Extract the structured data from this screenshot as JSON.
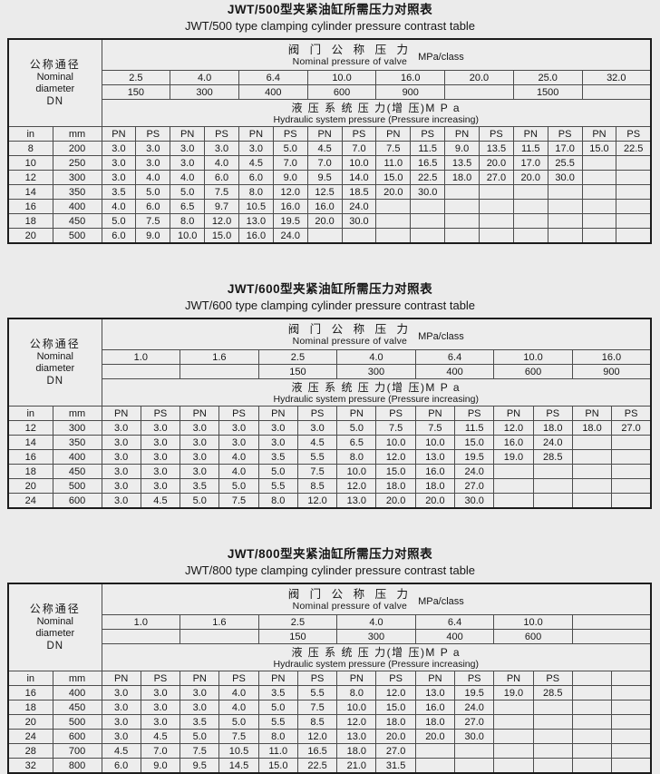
{
  "page_bg": "#ebebeb",
  "border_color": "#1c1c1c",
  "shared": {
    "left_header": {
      "cn": "公称通径",
      "en1": "Nominal",
      "en2": "diameter",
      "en3": "DN"
    },
    "valve_header": {
      "cn": "阀 门 公 称 压 力",
      "en": "Nominal pressure of valve",
      "unit": "MPa/class"
    },
    "hydraulic_header": {
      "cn": "液 压 系 统 压 力(增 压)M P a",
      "en": "Hydraulic system pressure (Pressure increasing)"
    },
    "unit_in": "in",
    "unit_mm": "mm",
    "pn_label": "PN",
    "ps_label": "PS"
  },
  "tables": [
    {
      "title_cn": "JWT/500型夹紧油缸所需压力对照表",
      "title_en": "JWT/500 type clamping cylinder pressure contrast table",
      "mpa_values": [
        "2.5",
        "4.0",
        "6.4",
        "10.0",
        "16.0",
        "20.0",
        "25.0",
        "32.0"
      ],
      "class_values": [
        "150",
        "300",
        "400",
        "600",
        "900",
        "",
        "1500",
        ""
      ],
      "col_headers": [
        "PN",
        "PS",
        "PN",
        "PS",
        "PN",
        "PS",
        "PN",
        "PS",
        "PN",
        "PS",
        "PN",
        "PS",
        "PN",
        "PS",
        "PN",
        "PS"
      ],
      "rows": [
        {
          "in": "8",
          "mm": "200",
          "values": [
            "3.0",
            "3.0",
            "3.0",
            "3.0",
            "3.0",
            "5.0",
            "4.5",
            "7.0",
            "7.5",
            "11.5",
            "9.0",
            "13.5",
            "11.5",
            "17.0",
            "15.0",
            "22.5"
          ]
        },
        {
          "in": "10",
          "mm": "250",
          "values": [
            "3.0",
            "3.0",
            "3.0",
            "4.0",
            "4.5",
            "7.0",
            "7.0",
            "10.0",
            "11.0",
            "16.5",
            "13.5",
            "20.0",
            "17.0",
            "25.5",
            "",
            ""
          ]
        },
        {
          "in": "12",
          "mm": "300",
          "values": [
            "3.0",
            "4.0",
            "4.0",
            "6.0",
            "6.0",
            "9.0",
            "9.5",
            "14.0",
            "15.0",
            "22.5",
            "18.0",
            "27.0",
            "20.0",
            "30.0",
            "",
            ""
          ]
        },
        {
          "in": "14",
          "mm": "350",
          "values": [
            "3.5",
            "5.0",
            "5.0",
            "7.5",
            "8.0",
            "12.0",
            "12.5",
            "18.5",
            "20.0",
            "30.0",
            "",
            "",
            "",
            "",
            "",
            ""
          ]
        },
        {
          "in": "16",
          "mm": "400",
          "values": [
            "4.0",
            "6.0",
            "6.5",
            "9.7",
            "10.5",
            "16.0",
            "16.0",
            "24.0",
            "",
            "",
            "",
            "",
            "",
            "",
            "",
            ""
          ]
        },
        {
          "in": "18",
          "mm": "450",
          "values": [
            "5.0",
            "7.5",
            "8.0",
            "12.0",
            "13.0",
            "19.5",
            "20.0",
            "30.0",
            "",
            "",
            "",
            "",
            "",
            "",
            "",
            ""
          ]
        },
        {
          "in": "20",
          "mm": "500",
          "values": [
            "6.0",
            "9.0",
            "10.0",
            "15.0",
            "16.0",
            "24.0",
            "",
            "",
            "",
            "",
            "",
            "",
            "",
            "",
            "",
            ""
          ]
        }
      ]
    },
    {
      "title_cn": "JWT/600型夹紧油缸所需压力对照表",
      "title_en": "JWT/600 type clamping cylinder pressure contrast table",
      "mpa_values": [
        "1.0",
        "1.6",
        "2.5",
        "4.0",
        "6.4",
        "10.0",
        "16.0"
      ],
      "class_values": [
        "",
        "",
        "150",
        "300",
        "400",
        "600",
        "900"
      ],
      "col_headers": [
        "PN",
        "PS",
        "PN",
        "PS",
        "PN",
        "PS",
        "PN",
        "PS",
        "PN",
        "PS",
        "PN",
        "PS",
        "PN",
        "PS"
      ],
      "rows": [
        {
          "in": "12",
          "mm": "300",
          "values": [
            "3.0",
            "3.0",
            "3.0",
            "3.0",
            "3.0",
            "3.0",
            "5.0",
            "7.5",
            "7.5",
            "11.5",
            "12.0",
            "18.0",
            "18.0",
            "27.0"
          ]
        },
        {
          "in": "14",
          "mm": "350",
          "values": [
            "3.0",
            "3.0",
            "3.0",
            "3.0",
            "3.0",
            "4.5",
            "6.5",
            "10.0",
            "10.0",
            "15.0",
            "16.0",
            "24.0",
            "",
            ""
          ]
        },
        {
          "in": "16",
          "mm": "400",
          "values": [
            "3.0",
            "3.0",
            "3.0",
            "4.0",
            "3.5",
            "5.5",
            "8.0",
            "12.0",
            "13.0",
            "19.5",
            "19.0",
            "28.5",
            "",
            ""
          ]
        },
        {
          "in": "18",
          "mm": "450",
          "values": [
            "3.0",
            "3.0",
            "3.0",
            "4.0",
            "5.0",
            "7.5",
            "10.0",
            "15.0",
            "16.0",
            "24.0",
            "",
            "",
            "",
            ""
          ]
        },
        {
          "in": "20",
          "mm": "500",
          "values": [
            "3.0",
            "3.0",
            "3.5",
            "5.0",
            "5.5",
            "8.5",
            "12.0",
            "18.0",
            "18.0",
            "27.0",
            "",
            "",
            "",
            ""
          ]
        },
        {
          "in": "24",
          "mm": "600",
          "values": [
            "3.0",
            "4.5",
            "5.0",
            "7.5",
            "8.0",
            "12.0",
            "13.0",
            "20.0",
            "20.0",
            "30.0",
            "",
            "",
            "",
            ""
          ]
        }
      ]
    },
    {
      "title_cn": "JWT/800型夹紧油缸所需压力对照表",
      "title_en": "JWT/800 type clamping cylinder pressure contrast table",
      "mpa_values": [
        "1.0",
        "1.6",
        "2.5",
        "4.0",
        "6.4",
        "10.0",
        ""
      ],
      "class_values": [
        "",
        "",
        "150",
        "300",
        "400",
        "600",
        ""
      ],
      "col_headers": [
        "PN",
        "PS",
        "PN",
        "PS",
        "PN",
        "PS",
        "PN",
        "PS",
        "PN",
        "PS",
        "PN",
        "PS",
        "",
        ""
      ],
      "rows": [
        {
          "in": "16",
          "mm": "400",
          "values": [
            "3.0",
            "3.0",
            "3.0",
            "4.0",
            "3.5",
            "5.5",
            "8.0",
            "12.0",
            "13.0",
            "19.5",
            "19.0",
            "28.5",
            "",
            ""
          ]
        },
        {
          "in": "18",
          "mm": "450",
          "values": [
            "3.0",
            "3.0",
            "3.0",
            "4.0",
            "5.0",
            "7.5",
            "10.0",
            "15.0",
            "16.0",
            "24.0",
            "",
            "",
            "",
            ""
          ]
        },
        {
          "in": "20",
          "mm": "500",
          "values": [
            "3.0",
            "3.0",
            "3.5",
            "5.0",
            "5.5",
            "8.5",
            "12.0",
            "18.0",
            "18.0",
            "27.0",
            "",
            "",
            "",
            ""
          ]
        },
        {
          "in": "24",
          "mm": "600",
          "values": [
            "3.0",
            "4.5",
            "5.0",
            "7.5",
            "8.0",
            "12.0",
            "13.0",
            "20.0",
            "20.0",
            "30.0",
            "",
            "",
            "",
            ""
          ]
        },
        {
          "in": "28",
          "mm": "700",
          "values": [
            "4.5",
            "7.0",
            "7.5",
            "10.5",
            "11.0",
            "16.5",
            "18.0",
            "27.0",
            "",
            "",
            "",
            "",
            "",
            ""
          ]
        },
        {
          "in": "32",
          "mm": "800",
          "values": [
            "6.0",
            "9.0",
            "9.5",
            "14.5",
            "15.0",
            "22.5",
            "21.0",
            "31.5",
            "",
            "",
            "",
            "",
            "",
            ""
          ]
        }
      ]
    }
  ]
}
